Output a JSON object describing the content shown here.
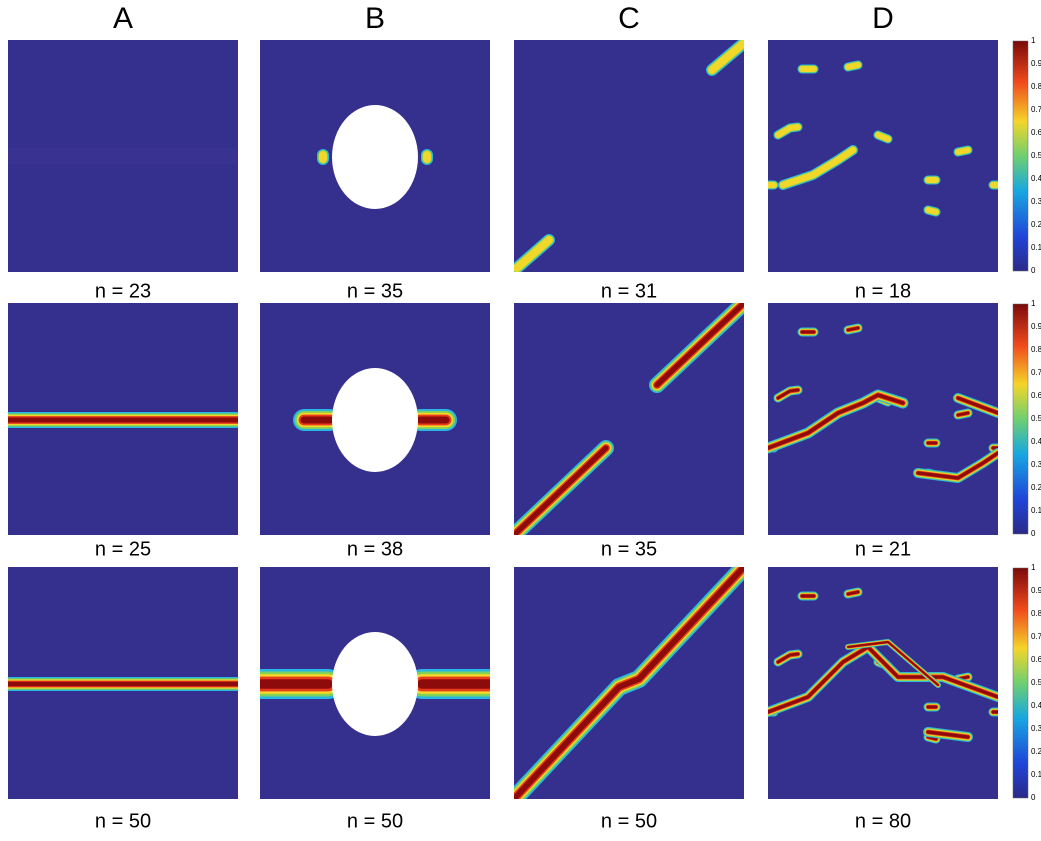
{
  "columns": [
    "A",
    "B",
    "C",
    "D"
  ],
  "rows": [
    {
      "captions": [
        "n = 23",
        "n = 35",
        "n = 31",
        "n = 18"
      ]
    },
    {
      "captions": [
        "n = 25",
        "n = 38",
        "n = 35",
        "n = 21"
      ]
    },
    {
      "captions": [
        "n = 50",
        "n = 50",
        "n = 50",
        "n = 80"
      ]
    }
  ],
  "colorbar": {
    "ticks": [
      "0",
      "0.1",
      "0.2",
      "0.3",
      "0.4",
      "0.5",
      "0.6",
      "0.7",
      "0.8",
      "0.9",
      "1"
    ]
  }
}
